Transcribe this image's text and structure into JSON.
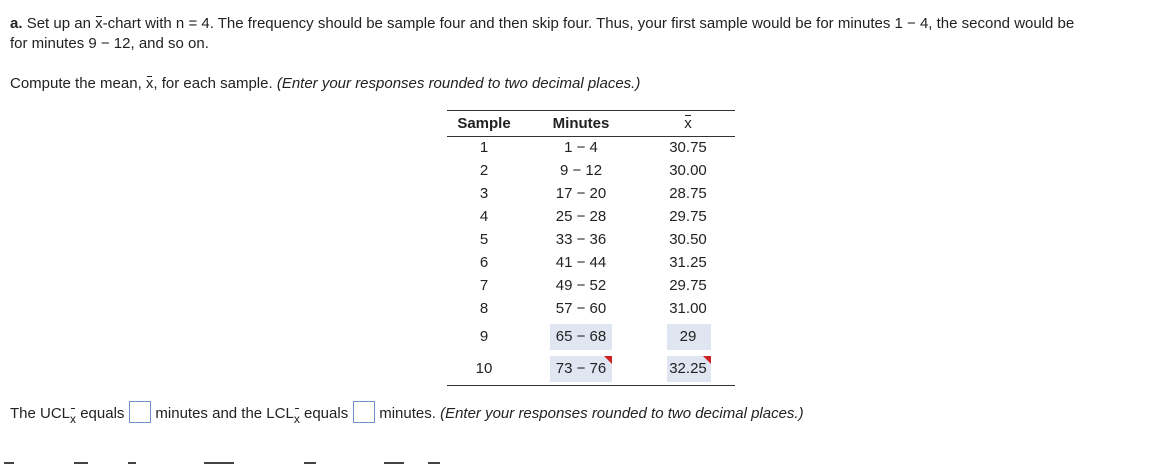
{
  "problem": {
    "part_label": "a.",
    "intro_a": "Set up an",
    "xbar_symbol": "x",
    "intro_b": "-chart with n = 4. The frequency should be sample four and then skip four. Thus, your first sample would be for minutes 1 − 4, the second would be",
    "intro_line2": "for minutes 9 − 12, and so on.",
    "compute_a": "Compute the mean,",
    "compute_b": ", for each sample.",
    "instruction": "(Enter your responses rounded to two decimal places.)"
  },
  "table": {
    "headers": {
      "sample": "Sample",
      "minutes": "Minutes",
      "xbar": "x"
    },
    "rows": [
      {
        "sample": "1",
        "minutes": "1 − 4",
        "xbar": "30.75"
      },
      {
        "sample": "2",
        "minutes": "9 − 12",
        "xbar": "30.00"
      },
      {
        "sample": "3",
        "minutes": "17 − 20",
        "xbar": "28.75"
      },
      {
        "sample": "4",
        "minutes": "25 − 28",
        "xbar": "29.75"
      },
      {
        "sample": "5",
        "minutes": "33 − 36",
        "xbar": "30.50"
      },
      {
        "sample": "6",
        "minutes": "41 − 44",
        "xbar": "31.25"
      },
      {
        "sample": "7",
        "minutes": "49 − 52",
        "xbar": "29.75"
      },
      {
        "sample": "8",
        "minutes": "57 − 60",
        "xbar": "31.00"
      },
      {
        "sample": "9",
        "minutes": "65 − 68",
        "xbar": "29",
        "highlight": true
      },
      {
        "sample": "10",
        "minutes": "73 − 76",
        "xbar": "32.25",
        "highlight": true,
        "flagged": true
      }
    ]
  },
  "limits": {
    "text_a": "The UCL",
    "sub": "x",
    "text_b": "equals",
    "ucl_value": "",
    "text_c": "minutes and the LCL",
    "text_d": "equals",
    "lcl_value": "",
    "text_e": "minutes.",
    "instruction": "(Enter your responses rounded to two decimal places.)"
  },
  "colors": {
    "highlight": "#dfe6f2",
    "flag": "#cc2222",
    "input_border": "#6b8fc9"
  }
}
